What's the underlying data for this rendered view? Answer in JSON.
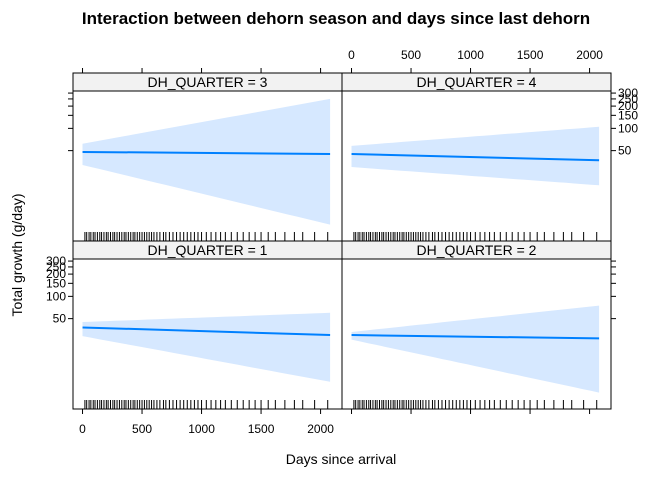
{
  "chart_data": {
    "type": "line",
    "title": "Interaction between dehorn season and days since last dehorn",
    "xlabel": "Days since arrival",
    "ylabel": "Total growth (g/day)",
    "xlim": [
      -80,
      2180
    ],
    "x_ticks": [
      0,
      500,
      1000,
      1500,
      2000
    ],
    "y_tick_labels": [
      "50",
      "100",
      "150",
      "200",
      "250",
      "300"
    ],
    "y_ticks": [
      50,
      100,
      150,
      200,
      250,
      300
    ],
    "line_color": "#0080ff",
    "band_color": "#d6e8ff",
    "strip_color": "#f2f2f2",
    "rug_x": [
      20,
      35,
      55,
      70,
      90,
      105,
      125,
      145,
      160,
      180,
      200,
      215,
      235,
      255,
      270,
      290,
      310,
      330,
      350,
      365,
      385,
      405,
      425,
      440,
      460,
      480,
      500,
      520,
      540,
      560,
      580,
      600,
      625,
      650,
      680,
      700,
      730,
      760,
      790,
      820,
      850,
      880,
      910,
      940,
      970,
      1000,
      1040,
      1080,
      1120,
      1160,
      1200,
      1250,
      1300,
      1350,
      1400,
      1450,
      1500,
      1560,
      1620,
      1700,
      1780,
      1850,
      1950,
      2060
    ],
    "panels": [
      {
        "label": "DH_QUARTER = 3",
        "quarter": 3,
        "x": [
          0,
          2080
        ],
        "fit": [
          48,
          45
        ],
        "lower": [
          32,
          5
        ],
        "upper": [
          62,
          250
        ]
      },
      {
        "label": "DH_QUARTER = 4",
        "quarter": 4,
        "x": [
          0,
          2080
        ],
        "fit": [
          45,
          37
        ],
        "lower": [
          30,
          17
        ],
        "upper": [
          58,
          105
        ]
      },
      {
        "label": "DH_QUARTER = 1",
        "quarter": 1,
        "x": [
          0,
          2080
        ],
        "fit": [
          38,
          30
        ],
        "lower": [
          29,
          7
        ],
        "upper": [
          45,
          60
        ]
      },
      {
        "label": "DH_QUARTER = 2",
        "quarter": 2,
        "x": [
          0,
          2080
        ],
        "fit": [
          30,
          27
        ],
        "lower": [
          26,
          5
        ],
        "upper": [
          33,
          75
        ]
      }
    ]
  }
}
